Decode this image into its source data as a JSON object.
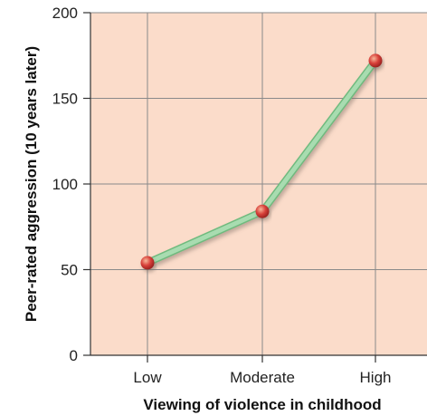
{
  "chart_data": {
    "type": "line",
    "title": "",
    "xlabel": "Viewing of violence in childhood",
    "ylabel": "Peer-rated aggression (10 years later)",
    "categories": [
      "Low",
      "Moderate",
      "High"
    ],
    "series": [
      {
        "values": [
          54,
          84,
          172
        ]
      }
    ],
    "ylim": [
      0,
      200
    ],
    "yticks": [
      0,
      50,
      100,
      150,
      200
    ],
    "grid": true,
    "colors": {
      "plot_background": "#fbdcca",
      "grid": "#8a8a8a",
      "line": "#a8dcb0",
      "line_edge": "#6fba7e",
      "marker": "#d8403a"
    }
  }
}
